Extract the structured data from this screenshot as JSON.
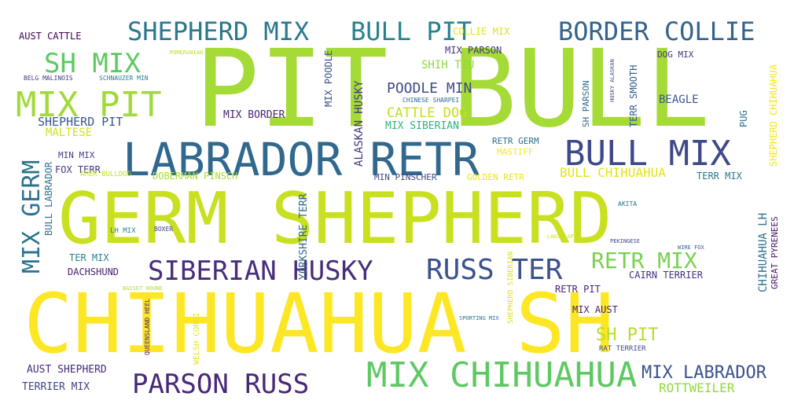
{
  "words": [
    {
      "text": "PIT BULL",
      "color": "#a5db36"
    },
    {
      "text": "GERM SHEPHERD",
      "color": "#c8e020"
    },
    {
      "text": "CHIHUAHUA SH",
      "color": "#fde725"
    },
    {
      "text": "LABRADOR RETR",
      "color": "#31688e"
    },
    {
      "text": "SIBERIAN HUSKY",
      "color": "#472d7b"
    },
    {
      "text": "RUSS TER",
      "color": "#3b528b"
    },
    {
      "text": "BULL MIX",
      "color": "#3e4989"
    },
    {
      "text": "MIX CHIHUAHUA",
      "color": "#5ec962"
    },
    {
      "text": "PARSON RUSS",
      "color": "#482878"
    },
    {
      "text": "SHEPHERD MIX",
      "color": "#2a788e"
    },
    {
      "text": "BULL PIT",
      "color": "#26828e"
    },
    {
      "text": "BORDER COLLIE",
      "color": "#33638d"
    },
    {
      "text": "MIX PIT",
      "color": "#a0da39"
    },
    {
      "text": "SH MIX",
      "color": "#5ec962"
    },
    {
      "text": "MIX GERM",
      "color": "#2c728e"
    },
    {
      "text": "RETR MIX",
      "color": "#7ad151"
    },
    {
      "text": "MIX LABRADOR",
      "color": "#3b528b"
    },
    {
      "text": "SH PIT",
      "color": "#b5de2b"
    },
    {
      "text": "ROTTWEILER",
      "color": "#95d840"
    },
    {
      "text": "AUST SHEPHERD",
      "color": "#472c7a"
    },
    {
      "text": "TERRIER MIX",
      "color": "#414487"
    },
    {
      "text": "POODLE MIN",
      "color": "#3e4a89"
    },
    {
      "text": "SHIH TZU",
      "color": "#8fd744"
    },
    {
      "text": "CATTLE DOG",
      "color": "#c2df23"
    },
    {
      "text": "MIX SIBERIAN",
      "color": "#2fb47c"
    },
    {
      "text": "SHEPHERD PIT",
      "color": "#38588c"
    },
    {
      "text": "MALTESE",
      "color": "#d5e21a"
    },
    {
      "text": "MIX BORDER",
      "color": "#482677"
    },
    {
      "text": "BEAGLE",
      "color": "#39568c"
    },
    {
      "text": "MIX PARSON",
      "color": "#46337f"
    },
    {
      "text": "COLLIE MIX",
      "color": "#dde318"
    },
    {
      "text": "DOG MIX",
      "color": "#46327e"
    },
    {
      "text": "AUST CATTLE",
      "color": "#440154"
    },
    {
      "text": "FOX TERR",
      "color": "#453882"
    },
    {
      "text": "MIN MIX",
      "color": "#433e85"
    },
    {
      "text": "AMER BULLDOG",
      "color": "#cde11d"
    },
    {
      "text": "DOBERMAN PINSCH",
      "color": "#aadc32"
    },
    {
      "text": "MIN PINSCHER",
      "color": "#3f4788"
    },
    {
      "text": "GOLDEN RETR",
      "color": "#e7e419"
    },
    {
      "text": "BULL CHIHUAHUA",
      "color": "#e2e418"
    },
    {
      "text": "TERR MIX",
      "color": "#2a768e"
    },
    {
      "text": "RETR GERM",
      "color": "#2e6f8e"
    },
    {
      "text": "MASTIFF",
      "color": "#fde725"
    },
    {
      "text": "TER MIX",
      "color": "#25838e"
    },
    {
      "text": "DACHSHUND",
      "color": "#482071"
    },
    {
      "text": "CAIRN TERRIER",
      "color": "#46307e"
    },
    {
      "text": "RETR PIT",
      "color": "#482475"
    },
    {
      "text": "MIX AUST",
      "color": "#481f70"
    },
    {
      "text": "RAT TERRIER",
      "color": "#3d4d8a"
    },
    {
      "text": "ALASKAN HUSKY",
      "color": "#453781"
    },
    {
      "text": "YORKSHIRE TERR",
      "color": "#31678e"
    },
    {
      "text": "MIX POODLE",
      "color": "#3a538b"
    },
    {
      "text": "BULL LABRADOR",
      "color": "#2c718e"
    },
    {
      "text": "SHEPHERD CHIHUAHUA",
      "color": "#f1e51d"
    },
    {
      "text": "CHIHUAHUA LH",
      "color": "#2d708e"
    },
    {
      "text": "GREAT PYRENEES",
      "color": "#481668"
    },
    {
      "text": "PUG",
      "color": "#2f6b8e"
    },
    {
      "text": "SH PARSON",
      "color": "#306a8e"
    },
    {
      "text": "TERR SMOOTH",
      "color": "#365c8d"
    },
    {
      "text": "WELSH CORGI",
      "color": "#e5e419"
    },
    {
      "text": "SHEPHERD SIBERIAN",
      "color": "#d8e219"
    },
    {
      "text": "BELG MALINOIS",
      "color": "#443983"
    },
    {
      "text": "SCHNAUZER MIN",
      "color": "#287c8e"
    },
    {
      "text": "QUEENSLAND HEEL",
      "color": "#481c6e"
    },
    {
      "text": "CHINESE SHARPEI",
      "color": "#2e6e8e"
    },
    {
      "text": "LH MIX",
      "color": "#25858e"
    },
    {
      "text": "BOXER",
      "color": "#433d84"
    },
    {
      "text": "HUSKY ALASKAN",
      "color": "#3f4889"
    },
    {
      "text": "BASSET HOUND",
      "color": "#b0dd2f"
    },
    {
      "text": "SPORTING MIX",
      "color": "#2a788e"
    },
    {
      "text": "PEKINGESE",
      "color": "#404688"
    },
    {
      "text": "WIRE FOX",
      "color": "#355f8d"
    },
    {
      "text": "LHASA APSO",
      "color": "#d0e11c"
    },
    {
      "text": "AKITA",
      "color": "#2c728e"
    },
    {
      "text": "POMERANIAN",
      "color": "#b8de29"
    }
  ]
}
